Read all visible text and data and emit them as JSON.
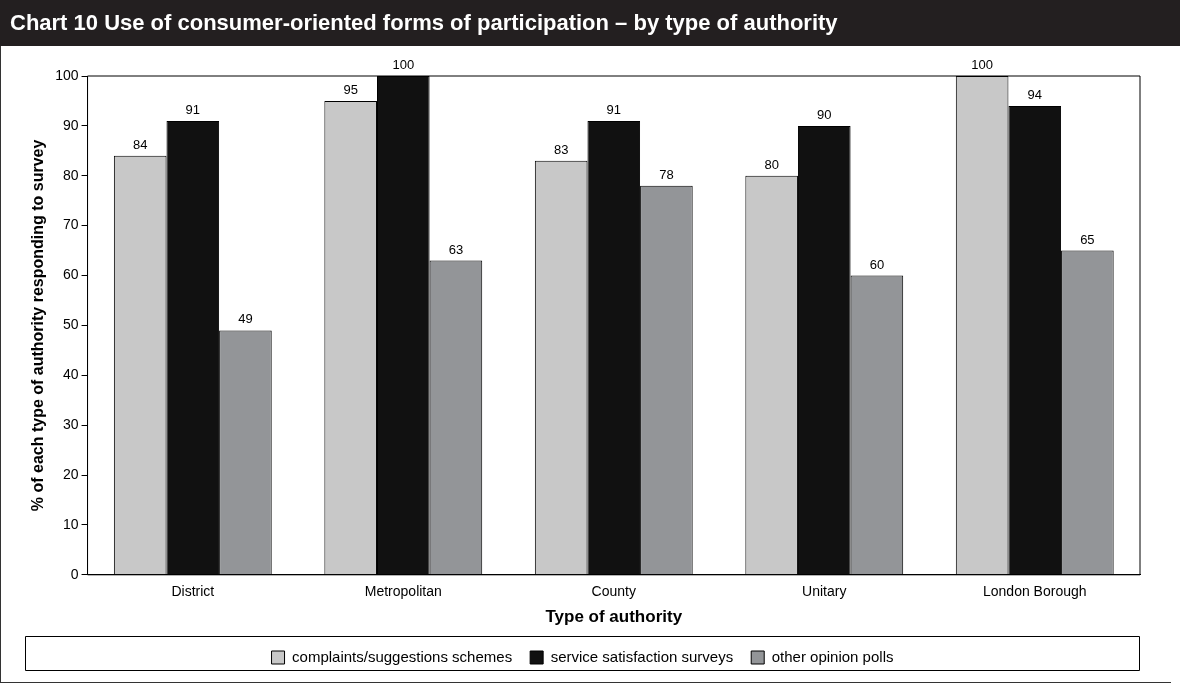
{
  "chart_data": {
    "type": "bar",
    "title": "Chart 10 Use of consumer-oriented forms of participation – by type of authority",
    "xlabel": "Type of authority",
    "ylabel": "% of each type of authority responding to survey",
    "categories": [
      "District",
      "Metropolitan",
      "County",
      "Unitary",
      "London Borough"
    ],
    "series": [
      {
        "name": "complaints/suggestions schemes",
        "color": "#c8c8c8",
        "values": [
          84,
          95,
          83,
          80,
          100
        ]
      },
      {
        "name": "service satisfaction surveys",
        "color": "#111111",
        "values": [
          91,
          100,
          91,
          90,
          94
        ]
      },
      {
        "name": "other opinion polls",
        "color": "#939598",
        "values": [
          49,
          63,
          78,
          60,
          65
        ]
      }
    ],
    "ylim": [
      0,
      100
    ],
    "yticks": [
      0,
      10,
      20,
      30,
      40,
      50,
      60,
      70,
      80,
      90,
      100
    ],
    "grid": false,
    "legend": "bottom",
    "data_labels": true
  }
}
